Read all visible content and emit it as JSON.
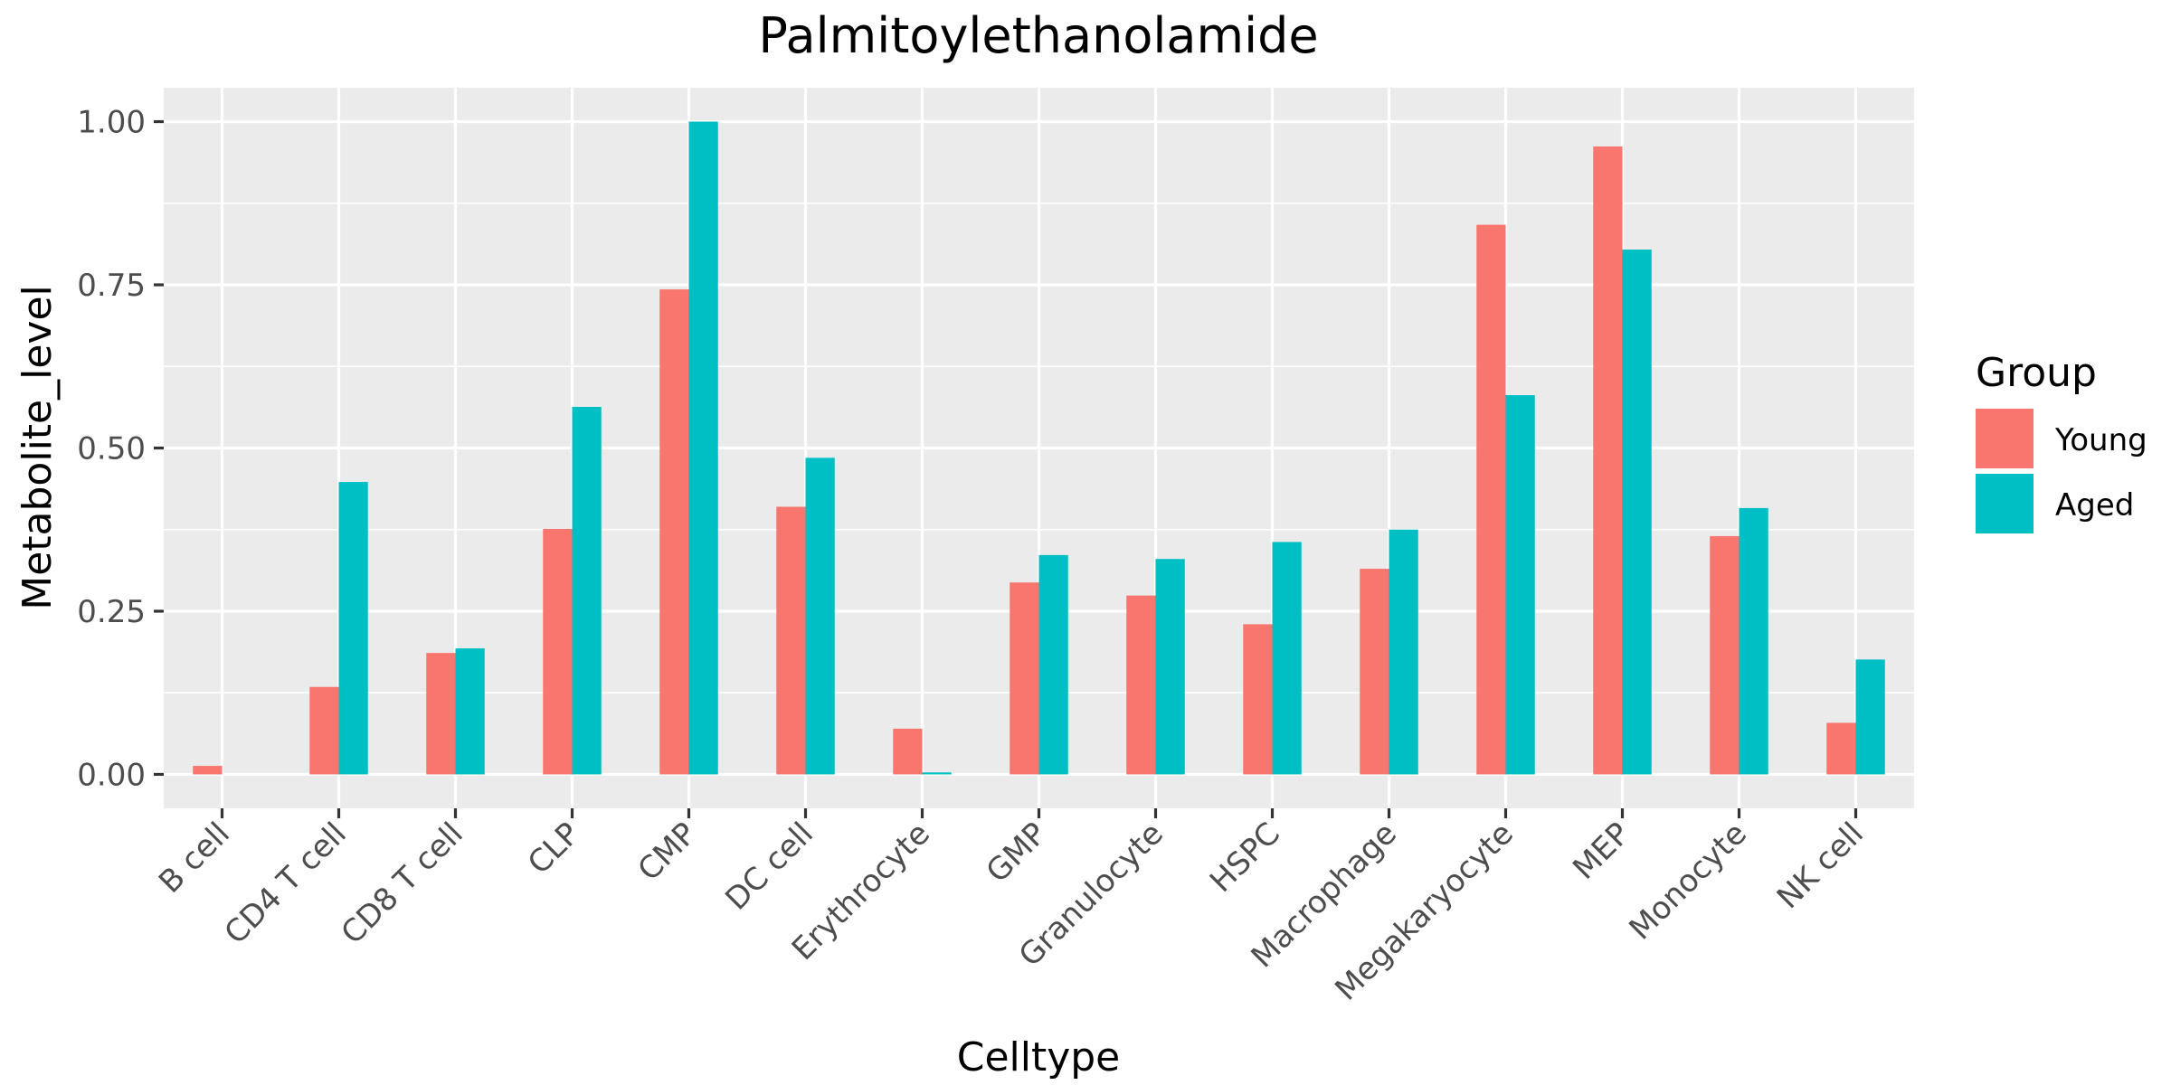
{
  "chart_data": {
    "type": "bar",
    "title": "Palmitoylethanolamide",
    "xlabel": "Celltype",
    "ylabel": "Metabolite_level",
    "ylim": [
      -0.052,
      1.052
    ],
    "yticks": [
      0.0,
      0.25,
      0.5,
      0.75,
      1.0
    ],
    "ytick_labels": [
      "0.00",
      "0.25",
      "0.50",
      "0.75",
      "1.00"
    ],
    "categories": [
      "B cell",
      "CD4 T cell",
      "CD8 T cell",
      "CLP",
      "CMP",
      "DC cell",
      "Erythrocyte",
      "GMP",
      "Granulocyte",
      "HSPC",
      "Macrophage",
      "Megakaryocyte",
      "MEP",
      "Monocyte",
      "NK cell"
    ],
    "series": [
      {
        "name": "Young",
        "color": "#F8766D",
        "values": [
          0.013,
          0.134,
          0.186,
          0.376,
          0.743,
          0.41,
          0.07,
          0.294,
          0.274,
          0.23,
          0.315,
          0.842,
          0.962,
          0.365,
          0.079
        ]
      },
      {
        "name": "Aged",
        "color": "#00BFC4",
        "values": [
          0.0,
          0.448,
          0.193,
          0.563,
          1.0,
          0.485,
          0.003,
          0.336,
          0.33,
          0.356,
          0.375,
          0.581,
          0.804,
          0.408,
          0.176
        ]
      }
    ],
    "legend": {
      "title": "Group",
      "position": "right"
    },
    "grid": true,
    "panel_background": "#EBEBEB",
    "grid_color": "#FFFFFF"
  }
}
